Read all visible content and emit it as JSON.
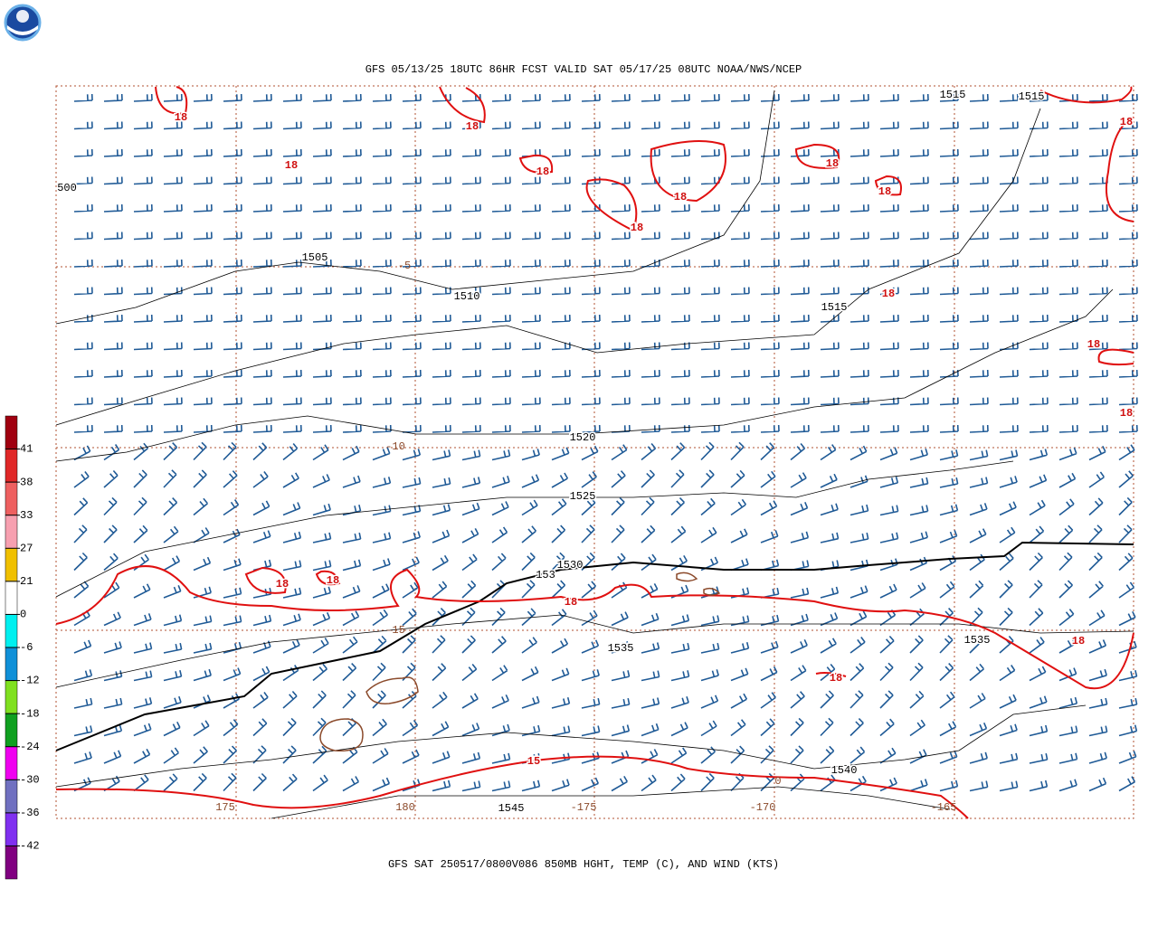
{
  "header": {
    "title": "GFS 05/13/25 18UTC 86HR FCST VALID SAT 05/17/25 08UTC NOAA/NWS/NCEP"
  },
  "footer": {
    "caption": "GFS SAT 250517/0800V086 850MB HGHT, TEMP (C), AND WIND (KTS)"
  },
  "colorbar": {
    "labels": [
      "41",
      "38",
      "33",
      "27",
      "21",
      "0",
      "-6",
      "-12",
      "-18",
      "-24",
      "-30",
      "-36",
      "-42"
    ],
    "colors": [
      "#a00010",
      "#e02828",
      "#ee6060",
      "#f7a0b0",
      "#f0c000",
      "#ffffff",
      "#00f0f0",
      "#1090d8",
      "#80e020",
      "#10a020",
      "#f000f0",
      "#7070c0",
      "#8030f0",
      "#800080"
    ]
  },
  "map": {
    "height_labels": [
      "1515",
      "1515",
      "500",
      "1505",
      "1510",
      "1515",
      "1520",
      "1525",
      "1530",
      "153",
      "1535",
      "1535",
      "1540",
      "1545"
    ],
    "temp_labels": [
      "18",
      "18",
      "18",
      "18",
      "18",
      "18",
      "18",
      "18",
      "18",
      "18",
      "18",
      "18",
      "18",
      "18",
      "18",
      "18",
      "18",
      "15"
    ],
    "grid_labels": [
      "-5",
      "-10",
      "-15",
      "175",
      "180",
      "-175",
      "-170",
      "-165",
      "0"
    ]
  }
}
